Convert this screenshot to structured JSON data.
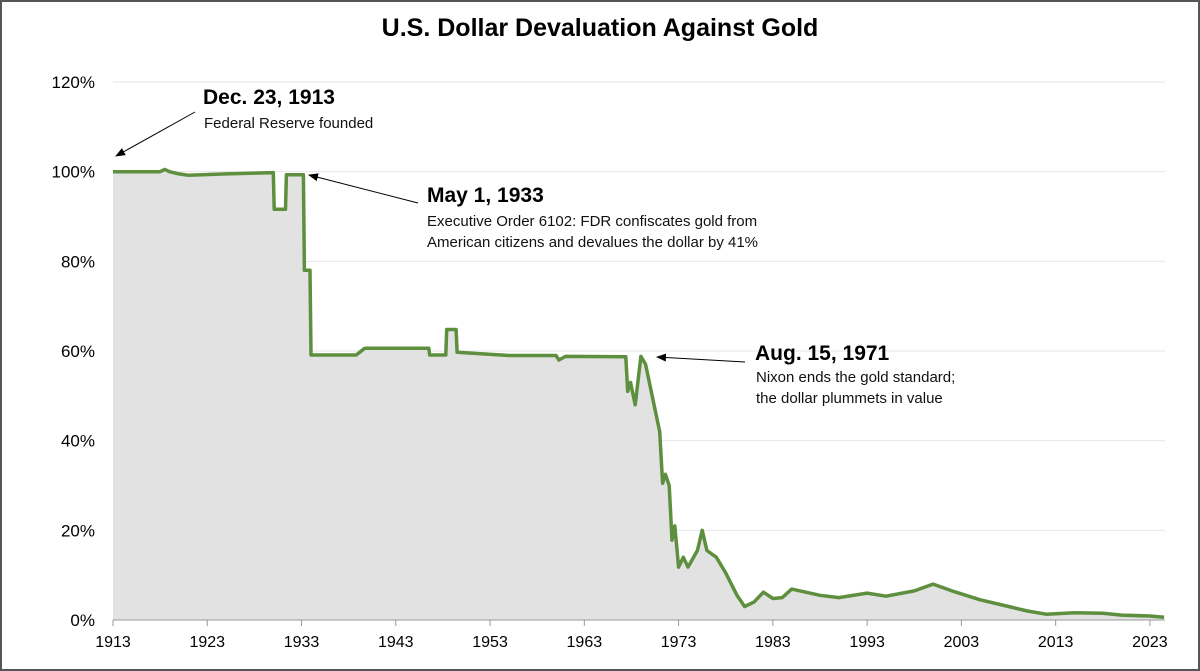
{
  "chart_data": {
    "type": "area",
    "title": "U.S. Dollar Devaluation Against Gold",
    "xlabel": "",
    "ylabel": "",
    "xlim": [
      1913,
      2024.6
    ],
    "ylim": [
      0,
      120
    ],
    "x_ticks": [
      "1913",
      "1923",
      "1933",
      "1943",
      "1953",
      "1963",
      "1973",
      "1983",
      "1993",
      "2003",
      "2013",
      "2023"
    ],
    "y_ticks": [
      "0%",
      "20%",
      "40%",
      "60%",
      "80%",
      "100%",
      "120%"
    ],
    "grid": "horizontal",
    "colors": {
      "line": "#5e8f3e",
      "fill": "#e2e2e2",
      "grid": "#e6e6e6"
    },
    "x": [
      1913,
      1918,
      1918.5,
      1919,
      1920,
      1921,
      1925,
      1930,
      1930.1,
      1931.3,
      1931.4,
      1933.2,
      1933.3,
      1933.9,
      1934,
      1938.8,
      1939.7,
      1946.5,
      1946.6,
      1948.3,
      1948.4,
      1949.4,
      1949.5,
      1955,
      1960,
      1960.3,
      1961,
      1967.4,
      1967.6,
      1967.9,
      1968.4,
      1969.0,
      1969.5,
      1970.3,
      1971.0,
      1971.3,
      1971.6,
      1972.0,
      1972.3,
      1972.6,
      1973.0,
      1973.5,
      1974.0,
      1975.0,
      1975.5,
      1976.0,
      1977.0,
      1978.0,
      1979.2,
      1980.0,
      1981.0,
      1982.0,
      1983.0,
      1984.0,
      1985.0,
      1988.0,
      1990.0,
      1993.0,
      1995.0,
      1998.0,
      2000.0,
      2002.0,
      2005.0,
      2008.0,
      2010.0,
      2012.0,
      2015.0,
      2018.0,
      2020.0,
      2023.0,
      2024.5
    ],
    "values": [
      100,
      100,
      100.5,
      100,
      99.5,
      99.2,
      99.5,
      99.8,
      91.6,
      91.6,
      99.3,
      99.3,
      78,
      78,
      59.1,
      59.1,
      60.6,
      60.6,
      59.1,
      59.1,
      64.8,
      64.8,
      59.7,
      59.0,
      59.0,
      58,
      58.8,
      58.7,
      51,
      53,
      48,
      58.8,
      57,
      49,
      42,
      30.5,
      32.5,
      30,
      17.8,
      21,
      11.8,
      14,
      11.8,
      15.5,
      20,
      15.5,
      14,
      10.5,
      5.5,
      3,
      4,
      6.2,
      4.8,
      5,
      6.9,
      5.5,
      5,
      6,
      5.3,
      6.5,
      8,
      6.5,
      4.5,
      3,
      2,
      1.3,
      1.6,
      1.5,
      1.1,
      0.9,
      0.6
    ],
    "annotations": [
      {
        "heading": "Dec. 23, 1913",
        "text": [
          "Federal Reserve founded"
        ]
      },
      {
        "heading": "May 1, 1933",
        "text": [
          "Executive Order 6102: FDR confiscates gold from",
          "American citizens and devalues the dollar by 41%"
        ]
      },
      {
        "heading": "Aug. 15, 1971",
        "text": [
          "Nixon ends the gold standard;",
          "the dollar plummets in value"
        ]
      }
    ]
  }
}
